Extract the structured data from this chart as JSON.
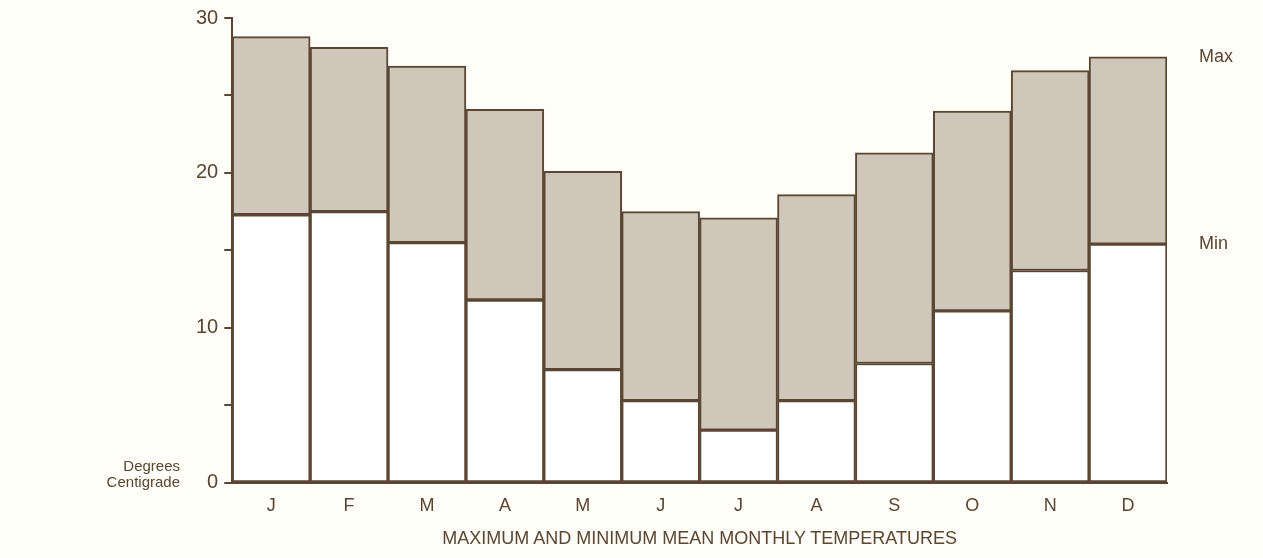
{
  "chart_data": {
    "type": "bar",
    "stacked": true,
    "categories": [
      "J",
      "F",
      "M",
      "A",
      "M",
      "J",
      "J",
      "A",
      "S",
      "O",
      "N",
      "D"
    ],
    "series": [
      {
        "name": "Min",
        "color": "#ffffff",
        "values": [
          17.3,
          17.5,
          15.5,
          11.8,
          7.3,
          5.3,
          3.4,
          5.3,
          7.7,
          11.1,
          13.7,
          15.4
        ]
      },
      {
        "name": "Max",
        "color": "#cfc8ba",
        "values": [
          11.5,
          10.6,
          11.4,
          12.3,
          12.8,
          12.2,
          13.7,
          13.3,
          13.6,
          12.9,
          12.9,
          12.1
        ]
      }
    ],
    "xlabel": "MAXIMUM AND MINIMUM MEAN MONTHLY TEMPERATURES",
    "ylabel": "Degrees Centigrade",
    "ylim": [
      0,
      30
    ],
    "yticks": [
      0,
      {
        "value": 5,
        "label": null
      },
      10,
      {
        "value": 15,
        "label": null
      },
      20,
      {
        "value": 25,
        "label": null
      },
      30
    ],
    "grid": false,
    "legend": false
  }
}
